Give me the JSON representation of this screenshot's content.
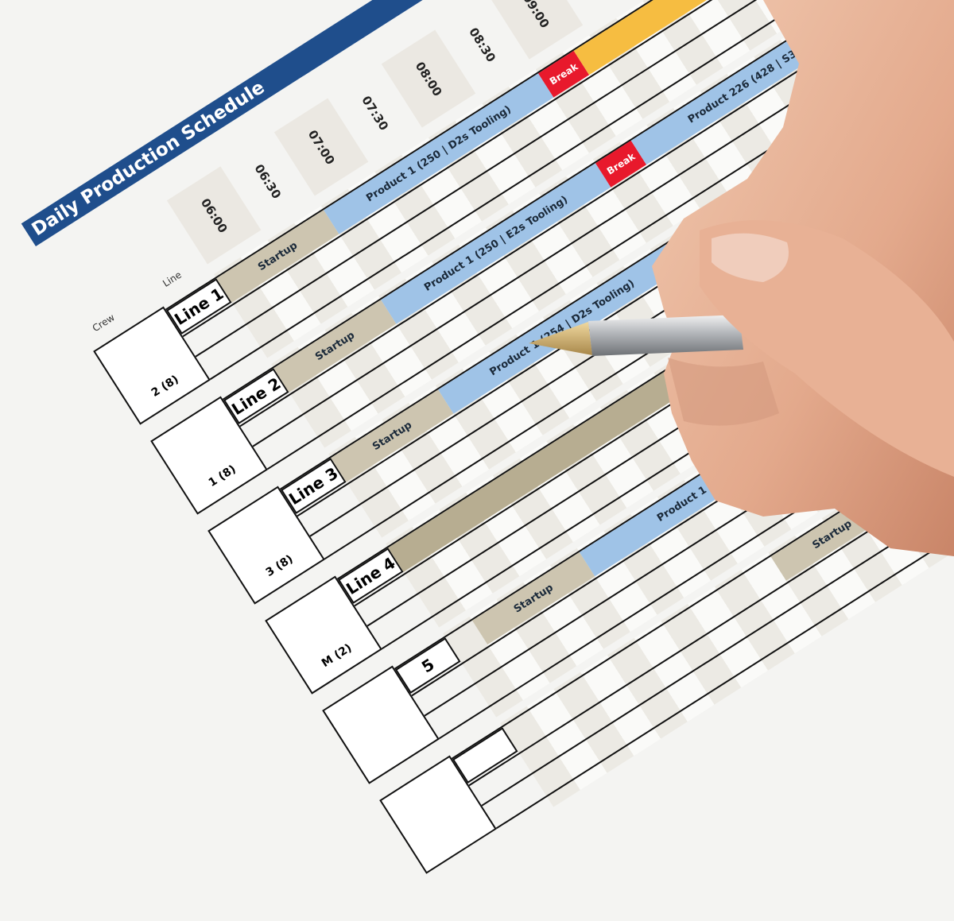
{
  "title": "Daily Production Schedule",
  "headers": {
    "crew": "Crew",
    "line": "Line"
  },
  "times": [
    "06:00",
    "06:30",
    "07:00",
    "07:30",
    "08:00",
    "08:30",
    "09:00"
  ],
  "colors": {
    "title": "#1f4e8c",
    "startup": "#cdc5b0",
    "product": "#9fc3e7",
    "break": "#e8192c",
    "changeover": "#f6bd41",
    "idle": "#1f4e8c",
    "long_startup": "#b7ad91"
  },
  "rows": [
    {
      "crew": "2 (8)",
      "line": "Line 1",
      "segments": [
        {
          "label": "Startup",
          "type": "startup",
          "start": "06:00",
          "end": "07:00"
        },
        {
          "label": "Product 1 (250 | D2s Tooling)",
          "type": "product",
          "start": "07:00",
          "end": "09:00"
        },
        {
          "label": "Break",
          "type": "break",
          "start": "09:00",
          "end": "09:20"
        },
        {
          "label": "",
          "type": "changeover",
          "start": "09:20",
          "end": "10:30"
        }
      ]
    },
    {
      "crew": "1 (8)",
      "line": "Line 2",
      "segments": [
        {
          "label": "Startup",
          "type": "startup",
          "start": "06:00",
          "end": "07:00"
        },
        {
          "label": "Product 1 (250 | E2s Tooling)",
          "type": "product",
          "start": "07:00",
          "end": "09:00"
        },
        {
          "label": "Break",
          "type": "break",
          "start": "09:00",
          "end": "09:20"
        },
        {
          "label": "Product 226 (428 | S300 To",
          "type": "product",
          "start": "09:20",
          "end": "11:30"
        }
      ]
    },
    {
      "crew": "3 (8)",
      "line": "Line 3",
      "segments": [
        {
          "label": "Startup",
          "type": "startup",
          "start": "06:00",
          "end": "07:00"
        },
        {
          "label": "Product 1 (254 | D2s Tooling)",
          "type": "product",
          "start": "07:00",
          "end": "09:10"
        },
        {
          "label": "Break",
          "type": "break",
          "start": "09:10",
          "end": "09:30"
        },
        {
          "label": "",
          "type": "idle",
          "start": "09:30",
          "end": "11:00"
        }
      ]
    },
    {
      "crew": "M (2)",
      "line": "Line 4",
      "segments": [
        {
          "label": "",
          "type": "long_startup",
          "start": "06:00",
          "end": "08:45"
        }
      ]
    },
    {
      "crew": "",
      "line": "5",
      "segments": [
        {
          "label": "Startup",
          "type": "startup",
          "start": "06:15",
          "end": "07:15"
        },
        {
          "label": "Product 1 (254",
          "type": "product",
          "start": "07:15",
          "end": "09:15"
        }
      ]
    },
    {
      "crew": "",
      "line": "",
      "segments": [
        {
          "label": "Startup",
          "type": "startup",
          "start": "08:30",
          "end": "09:30"
        }
      ]
    }
  ]
}
